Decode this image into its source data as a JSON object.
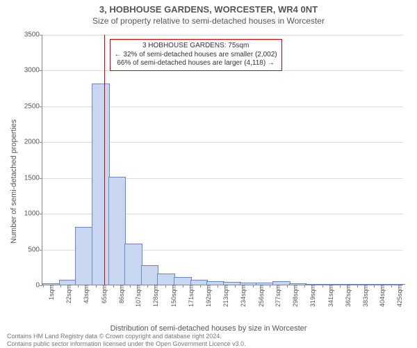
{
  "title_main": "3, HOBHOUSE GARDENS, WORCESTER, WR4 0NT",
  "title_sub": "Size of property relative to semi-detached houses in Worcester",
  "ylabel": "Number of semi-detached properties",
  "xlabel": "Distribution of semi-detached houses by size in Worcester",
  "footnote_1": "Contains HM Land Registry data © Crown copyright and database right 2024.",
  "footnote_2": "Contains public sector information licensed under the Open Government Licence v3.0.",
  "annotation": {
    "line1": "3 HOBHOUSE GARDENS: 75sqm",
    "line2": "← 32% of semi-detached houses are smaller (2,002)",
    "line3": "66% of semi-detached houses are larger (4,118) →"
  },
  "chart": {
    "type": "histogram",
    "x_min": 0,
    "x_max": 440,
    "y_min": 0,
    "y_max": 3500,
    "bar_width_units": 20,
    "bar_color": "#c9d6ef",
    "bar_border": "#6b87c4",
    "grid_color": "#dddddd",
    "axis_color": "#888888",
    "marker_x": 75,
    "marker_color": "#cc0000",
    "yticks": [
      0,
      500,
      1000,
      1500,
      2000,
      2500,
      3000,
      3500
    ],
    "xticks": [
      1,
      22,
      43,
      65,
      86,
      107,
      128,
      150,
      171,
      192,
      213,
      234,
      256,
      277,
      298,
      319,
      341,
      362,
      383,
      404,
      425
    ],
    "xtick_suffix": "sqm",
    "bars": [
      {
        "x": 0,
        "y": 10
      },
      {
        "x": 20,
        "y": 60
      },
      {
        "x": 40,
        "y": 800
      },
      {
        "x": 60,
        "y": 2800
      },
      {
        "x": 80,
        "y": 1500
      },
      {
        "x": 100,
        "y": 560
      },
      {
        "x": 120,
        "y": 260
      },
      {
        "x": 140,
        "y": 150
      },
      {
        "x": 160,
        "y": 95
      },
      {
        "x": 180,
        "y": 60
      },
      {
        "x": 200,
        "y": 40
      },
      {
        "x": 220,
        "y": 30
      },
      {
        "x": 240,
        "y": 20
      },
      {
        "x": 260,
        "y": 15
      },
      {
        "x": 280,
        "y": 40
      },
      {
        "x": 300,
        "y": 8
      },
      {
        "x": 320,
        "y": 5
      },
      {
        "x": 340,
        "y": 3
      },
      {
        "x": 360,
        "y": 3
      },
      {
        "x": 380,
        "y": 2
      },
      {
        "x": 400,
        "y": 2
      },
      {
        "x": 420,
        "y": 1
      }
    ]
  }
}
